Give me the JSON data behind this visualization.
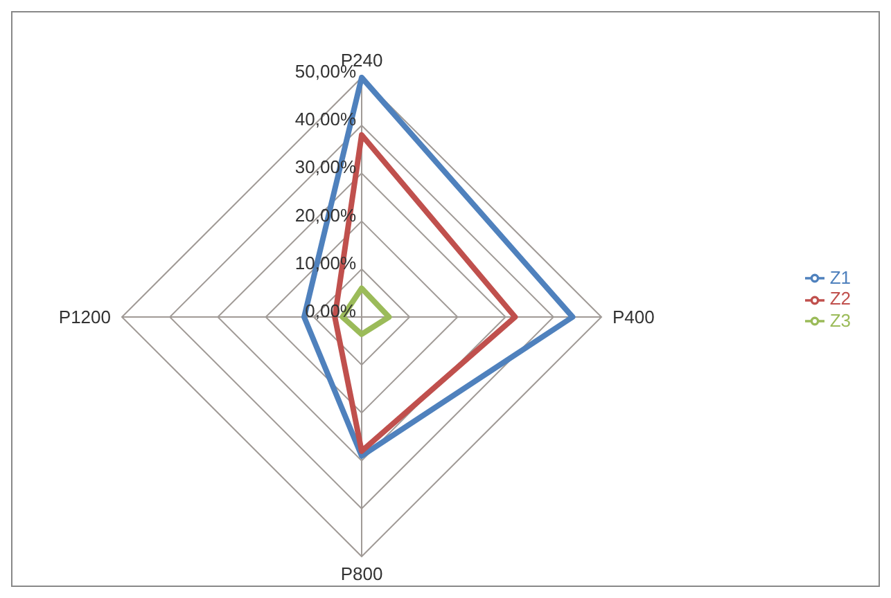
{
  "chart_data": {
    "type": "radar",
    "categories": [
      "P240",
      "P400",
      "P800",
      "P1200"
    ],
    "series": [
      {
        "name": "Z1",
        "color": "#4f81bd",
        "values": [
          50,
          44,
          29,
          12
        ]
      },
      {
        "name": "Z2",
        "color": "#c0504d",
        "values": [
          38,
          32,
          28,
          5.6
        ]
      },
      {
        "name": "Z3",
        "color": "#9bbb59",
        "values": [
          6,
          5.7,
          3.6,
          4
        ]
      }
    ],
    "ylim": [
      0,
      50
    ],
    "yticks": [
      {
        "value": 0,
        "label": "0,00%"
      },
      {
        "value": 10,
        "label": "10,00%"
      },
      {
        "value": 20,
        "label": "20,00%"
      },
      {
        "value": 30,
        "label": "30,00%"
      },
      {
        "value": 40,
        "label": "40,00%"
      },
      {
        "value": 50,
        "label": "50,00%"
      }
    ],
    "grid": true,
    "legend": "right",
    "marker": "none"
  }
}
